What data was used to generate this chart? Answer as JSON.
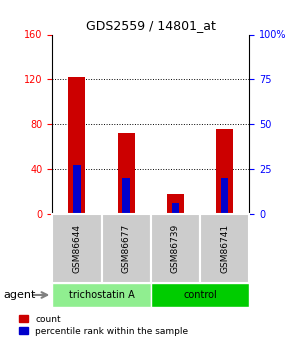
{
  "title": "GDS2559 / 14801_at",
  "samples": [
    "GSM86644",
    "GSM86677",
    "GSM86739",
    "GSM86741"
  ],
  "red_values": [
    122,
    72,
    18,
    76
  ],
  "blue_values": [
    44,
    32,
    10,
    32
  ],
  "ylim_left": [
    0,
    160
  ],
  "ylim_right": [
    0,
    100
  ],
  "yticks_left": [
    0,
    40,
    80,
    120,
    160
  ],
  "yticks_right": [
    0,
    25,
    50,
    75,
    100
  ],
  "yticklabels_right": [
    "0",
    "25",
    "50",
    "75",
    "100%"
  ],
  "groups": [
    {
      "label": "trichostatin A",
      "samples": [
        0,
        1
      ],
      "color": "#90EE90"
    },
    {
      "label": "control",
      "samples": [
        2,
        3
      ],
      "color": "#00CC00"
    }
  ],
  "agent_label": "agent",
  "bar_width": 0.35,
  "red_color": "#CC0000",
  "blue_color": "#0000CC",
  "blue_bar_width": 0.15,
  "grid_color": "#000000",
  "bg_color": "#FFFFFF",
  "sample_box_color": "#CCCCCC",
  "legend_count": "count",
  "legend_pct": "percentile rank within the sample"
}
